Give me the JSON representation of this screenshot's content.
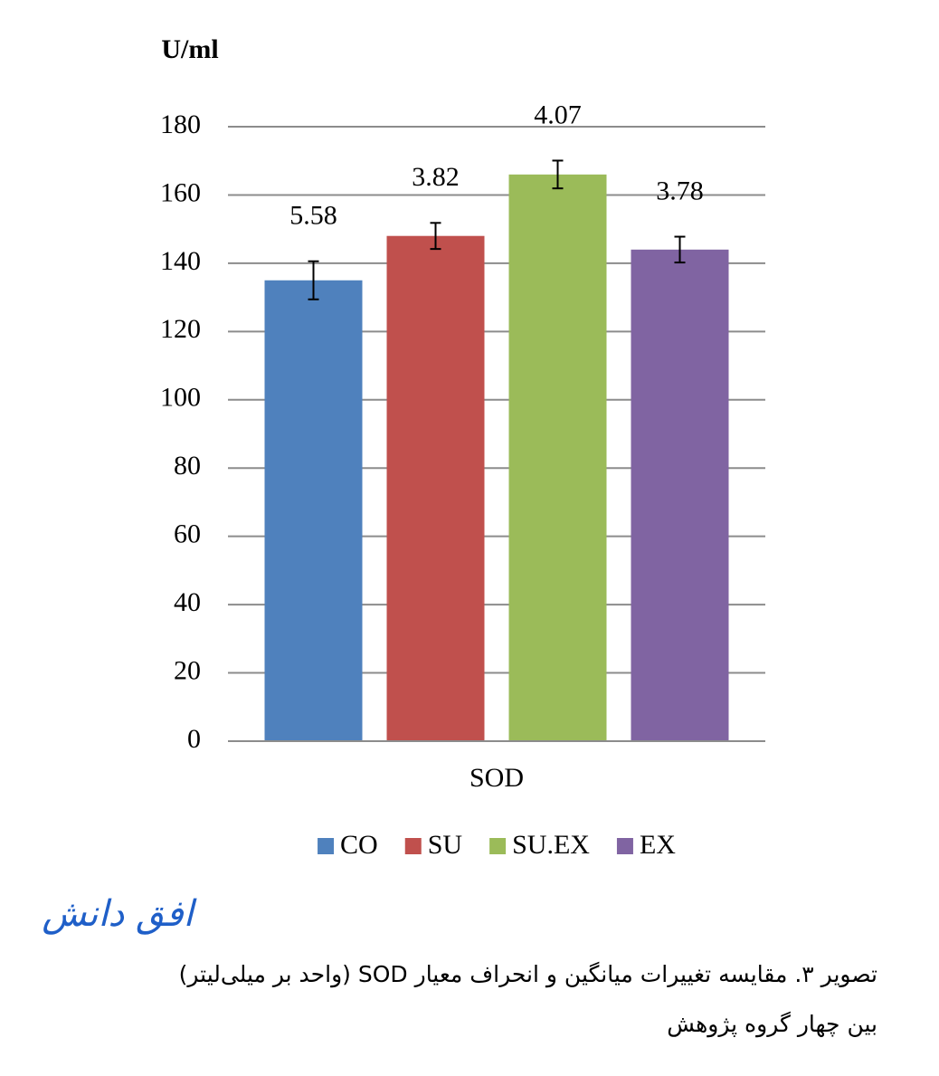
{
  "chart_data": {
    "type": "bar",
    "y_label": "U/ml",
    "x_label": "SOD",
    "categories": [
      "SOD"
    ],
    "series": [
      {
        "name": "CO",
        "color": "#4f81bd",
        "values": [
          135
        ],
        "errors": [
          5.58
        ]
      },
      {
        "name": "SU",
        "color": "#c0504d",
        "values": [
          148
        ],
        "errors": [
          3.82
        ]
      },
      {
        "name": "SU.EX",
        "color": "#9bbb59",
        "values": [
          166
        ],
        "errors": [
          4.07
        ]
      },
      {
        "name": "EX",
        "color": "#8064a2",
        "values": [
          144
        ],
        "errors": [
          3.78
        ]
      }
    ],
    "ylim": [
      0,
      180
    ],
    "yticks": [
      0,
      20,
      40,
      60,
      80,
      100,
      120,
      140,
      160,
      180
    ],
    "grid": true,
    "legend": "bottom"
  },
  "logo": "افق دانش",
  "caption": [
    "تصویر ۳. مقایسه تغییرات میانگین و انحراف معیار SOD (واحد بر میلی‌لیتر)",
    "بین چهار گروه پژوهش"
  ]
}
